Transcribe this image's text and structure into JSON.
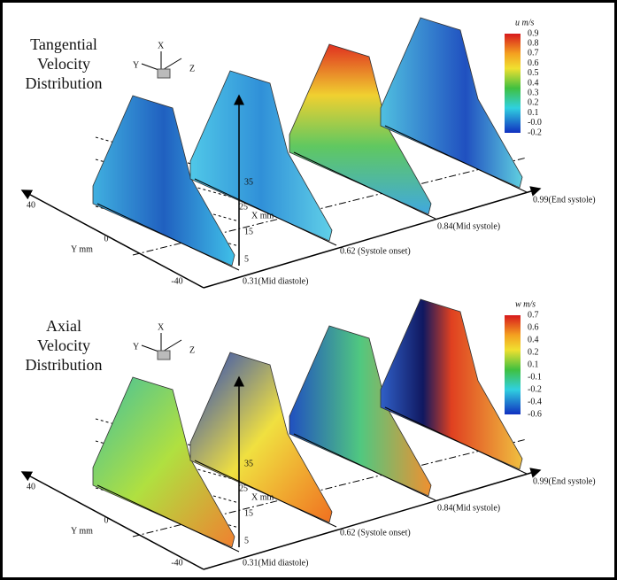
{
  "panels": [
    {
      "title_lines": [
        "Tangential",
        "Velocity",
        "Distribution"
      ],
      "axis_icon": {
        "x": "X",
        "y": "Y",
        "z": "Z"
      },
      "colorbar": {
        "label": "u m/s",
        "ticks": [
          "0.9",
          "0.8",
          "0.7",
          "0.6",
          "0.5",
          "0.4",
          "0.3",
          "0.2",
          "0.1",
          "-0.0",
          "-0.2"
        ]
      },
      "y_axis": {
        "label": "Y mm",
        "ticks": [
          "40",
          "0",
          "-40"
        ]
      },
      "x_axis": {
        "label": "X mm",
        "ticks": [
          "35",
          "25",
          "15",
          "5"
        ]
      },
      "phases": [
        "0.31(Mid diastole)",
        "0.62 (Systole onset)",
        "0.84(Mid systole)",
        "0.99(End systole)"
      ]
    },
    {
      "title_lines": [
        "Axial",
        "Velocity",
        "Distribution"
      ],
      "axis_icon": {
        "x": "X",
        "y": "Y",
        "z": "Z"
      },
      "colorbar": {
        "label": "w m/s",
        "ticks": [
          "0.7",
          "0.6",
          "0.4",
          "0.2",
          "0.1",
          "-0.1",
          "-0.2",
          "-0.4",
          "-0.6"
        ]
      },
      "y_axis": {
        "label": "Y mm",
        "ticks": [
          "40",
          "0",
          "-40"
        ]
      },
      "x_axis": {
        "label": "X mm",
        "ticks": [
          "35",
          "25",
          "15",
          "5"
        ]
      },
      "phases": [
        "0.31(Mid diastole)",
        "0.62 (Systole onset)",
        "0.84(Mid systole)",
        "0.99(End systole)"
      ]
    }
  ]
}
